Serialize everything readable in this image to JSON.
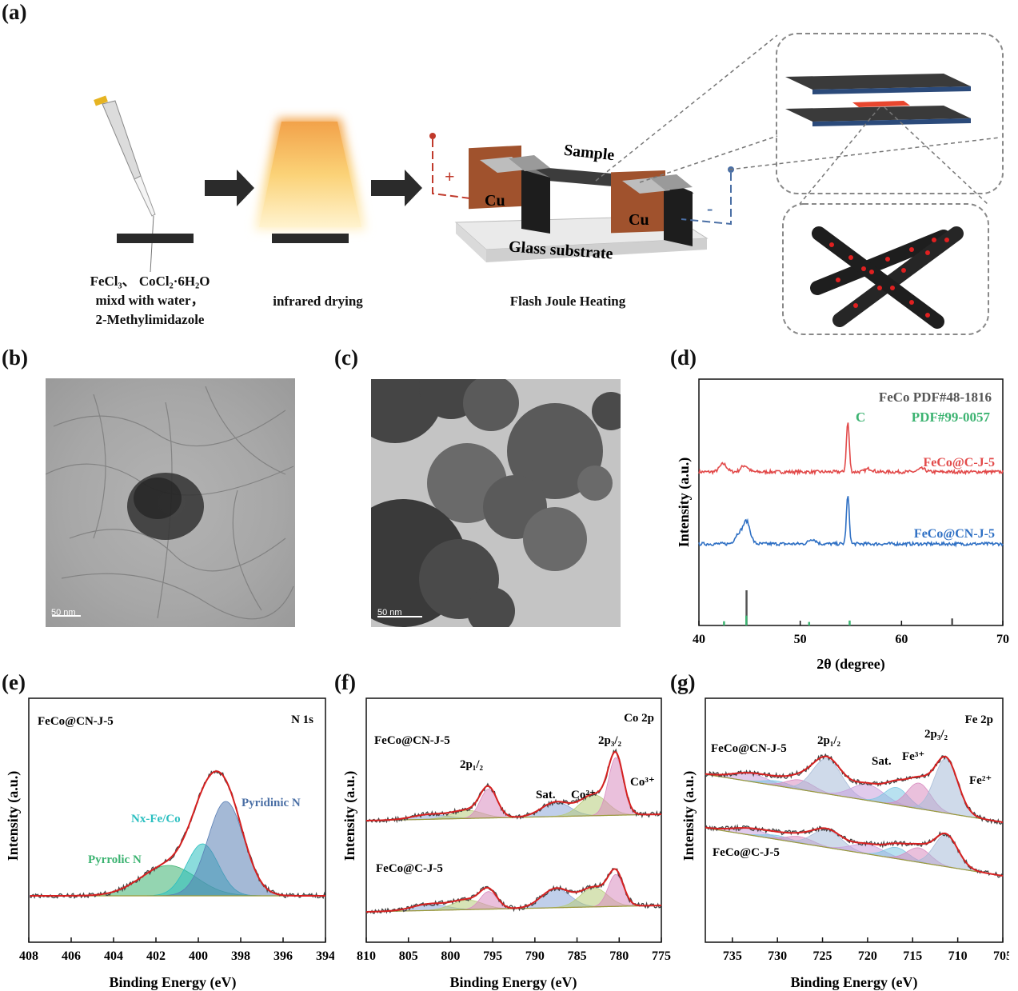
{
  "panel_labels": [
    "(a)",
    "(b)",
    "(c)",
    "(d)",
    "(e)",
    "(f)",
    "(g)"
  ],
  "schematic": {
    "step1_caption_lines": [
      "FeCl₃、 CoCl₂·6H₂O",
      "mixd with water，",
      "2-Methylimidazole"
    ],
    "step2_caption": "infrared drying",
    "step3_caption": "Flash Joule Heating",
    "sample_label": "Sample",
    "electrode_label": "Cu",
    "substrate_label": "Glass substrate",
    "plus_sign": "+",
    "minus_sign": "-"
  },
  "tem": {
    "b_scale": "50  nm",
    "c_scale": "50  nm"
  },
  "xrd": {
    "chart_data": {
      "type": "line",
      "xlabel": "2θ (degree)",
      "ylabel": "Intensity (a.u.)",
      "xlim": [
        40,
        70
      ],
      "xticks": [
        "40",
        "50",
        "60",
        "70"
      ],
      "legend": [
        "FeCo PDF#48-1816",
        "C",
        "PDF#99-0057"
      ],
      "series": [
        {
          "name": "FeCo@C-J-5",
          "color": "#e24a4a",
          "peaks": [
            {
              "x": 42.4,
              "h": 10
            },
            {
              "x": 44.5,
              "h": 8
            },
            {
              "x": 54.7,
              "h": 62
            },
            {
              "x": 56.8,
              "h": 4
            },
            {
              "x": 62.0,
              "h": 4
            }
          ]
        },
        {
          "name": "FeCo@CN-J-5",
          "color": "#2f70c4",
          "peaks": [
            {
              "x": 43.9,
              "h": 12
            },
            {
              "x": 44.7,
              "h": 28
            },
            {
              "x": 51.2,
              "h": 6
            },
            {
              "x": 54.7,
              "h": 60
            }
          ]
        }
      ],
      "reference_FeCo": [
        {
          "x": 44.7,
          "h": 1.0
        },
        {
          "x": 65.0,
          "h": 0.2
        }
      ],
      "reference_C": [
        {
          "x": 42.4,
          "h": 0.12
        },
        {
          "x": 44.6,
          "h": 0.28
        },
        {
          "x": 50.8,
          "h": 0.1
        },
        {
          "x": 54.8,
          "h": 0.14
        }
      ]
    }
  },
  "xps_n": {
    "chart_data": {
      "type": "line",
      "xlabel": "Binding Energy (eV)",
      "ylabel": "Intensity (a.u.)",
      "xlim": [
        408,
        394
      ],
      "xticks": [
        "408",
        "406",
        "404",
        "402",
        "400",
        "398",
        "396",
        "394"
      ],
      "sample": "FeCo@CN-J-5",
      "region": "N 1s",
      "components": [
        {
          "name": "Pyrrolic N",
          "center": 401.4,
          "amp": 38,
          "width": 1.3,
          "color": "#3cb371"
        },
        {
          "name": "Nx-Fe/Co",
          "center": 399.8,
          "amp": 65,
          "width": 0.75,
          "color": "#2bbfc0"
        },
        {
          "name": "Pyridinic N",
          "center": 398.7,
          "amp": 118,
          "width": 0.85,
          "color": "#5a7fb5"
        }
      ]
    }
  },
  "xps_co": {
    "chart_data": {
      "type": "line",
      "xlabel": "Binding Energy (eV)",
      "ylabel": "Intensity (a.u.)",
      "xlim": [
        810,
        775
      ],
      "xticks": [
        "810",
        "805",
        "800",
        "795",
        "790",
        "785",
        "780",
        "775"
      ],
      "region": "Co 2p",
      "labels": [
        "2p₁/₂",
        "Sat.",
        "Co²⁺",
        "2p₃/₂",
        "Co³⁺"
      ],
      "series": [
        {
          "name": "FeCo@CN-J-5",
          "components": [
            {
              "center": 802.5,
              "amp": 6,
              "width": 2.0,
              "color": "#8da8d8"
            },
            {
              "center": 798.0,
              "amp": 10,
              "width": 1.8,
              "color": "#b7cc7a"
            },
            {
              "center": 795.5,
              "amp": 36,
              "width": 1.0,
              "color": "#d98cc0"
            },
            {
              "center": 787.5,
              "amp": 18,
              "width": 1.7,
              "color": "#8da8d8"
            },
            {
              "center": 783.0,
              "amp": 26,
              "width": 1.6,
              "color": "#b7cc7a"
            },
            {
              "center": 780.4,
              "amp": 72,
              "width": 0.9,
              "color": "#d98cc0"
            }
          ]
        },
        {
          "name": "FeCo@C-J-5",
          "components": [
            {
              "center": 802.5,
              "amp": 8,
              "width": 2.0,
              "color": "#8da8d8"
            },
            {
              "center": 798.0,
              "amp": 12,
              "width": 1.8,
              "color": "#b7cc7a"
            },
            {
              "center": 795.5,
              "amp": 22,
              "width": 1.0,
              "color": "#d98cc0"
            },
            {
              "center": 787.5,
              "amp": 24,
              "width": 1.7,
              "color": "#8da8d8"
            },
            {
              "center": 783.0,
              "amp": 24,
              "width": 1.6,
              "color": "#b7cc7a"
            },
            {
              "center": 780.4,
              "amp": 40,
              "width": 0.9,
              "color": "#d98cc0"
            }
          ]
        }
      ]
    }
  },
  "xps_fe": {
    "chart_data": {
      "type": "line",
      "xlabel": "Binding Energy (eV)",
      "ylabel": "Intensity (a.u.)",
      "xlim": [
        738,
        705
      ],
      "xticks": [
        "735",
        "730",
        "725",
        "720",
        "715",
        "710",
        "705"
      ],
      "region": "Fe 2p",
      "labels": [
        "2p₁/₂",
        "Sat.",
        "Fe³⁺",
        "2p₃/₂",
        "Fe²⁺"
      ],
      "series": [
        {
          "name": "FeCo@CN-J-5",
          "components": [
            {
              "center": 733.0,
              "amp": 10,
              "width": 2.0,
              "color": "#c9a0dc"
            },
            {
              "center": 730.0,
              "amp": 6,
              "width": 1.5,
              "color": "#7ec8e3"
            },
            {
              "center": 727.5,
              "amp": 12,
              "width": 1.5,
              "color": "#d98cc0"
            },
            {
              "center": 724.5,
              "amp": 44,
              "width": 1.6,
              "color": "#a8bcd8"
            },
            {
              "center": 720.0,
              "amp": 20,
              "width": 1.8,
              "color": "#c9a0dc"
            },
            {
              "center": 716.8,
              "amp": 22,
              "width": 1.3,
              "color": "#7ec8e3"
            },
            {
              "center": 714.3,
              "amp": 32,
              "width": 1.3,
              "color": "#d98cc0"
            },
            {
              "center": 711.3,
              "amp": 68,
              "width": 1.3,
              "color": "#a8bcd8"
            }
          ]
        },
        {
          "name": "FeCo@C-J-5",
          "components": [
            {
              "center": 733.0,
              "amp": 8,
              "width": 2.0,
              "color": "#c9a0dc"
            },
            {
              "center": 730.0,
              "amp": 5,
              "width": 1.5,
              "color": "#7ec8e3"
            },
            {
              "center": 727.5,
              "amp": 8,
              "width": 1.5,
              "color": "#d98cc0"
            },
            {
              "center": 724.5,
              "amp": 22,
              "width": 1.6,
              "color": "#a8bcd8"
            },
            {
              "center": 720.0,
              "amp": 12,
              "width": 1.8,
              "color": "#c9a0dc"
            },
            {
              "center": 716.8,
              "amp": 14,
              "width": 1.3,
              "color": "#7ec8e3"
            },
            {
              "center": 714.3,
              "amp": 18,
              "width": 1.3,
              "color": "#d98cc0"
            },
            {
              "center": 711.3,
              "amp": 40,
              "width": 1.3,
              "color": "#a8bcd8"
            }
          ]
        }
      ]
    }
  }
}
